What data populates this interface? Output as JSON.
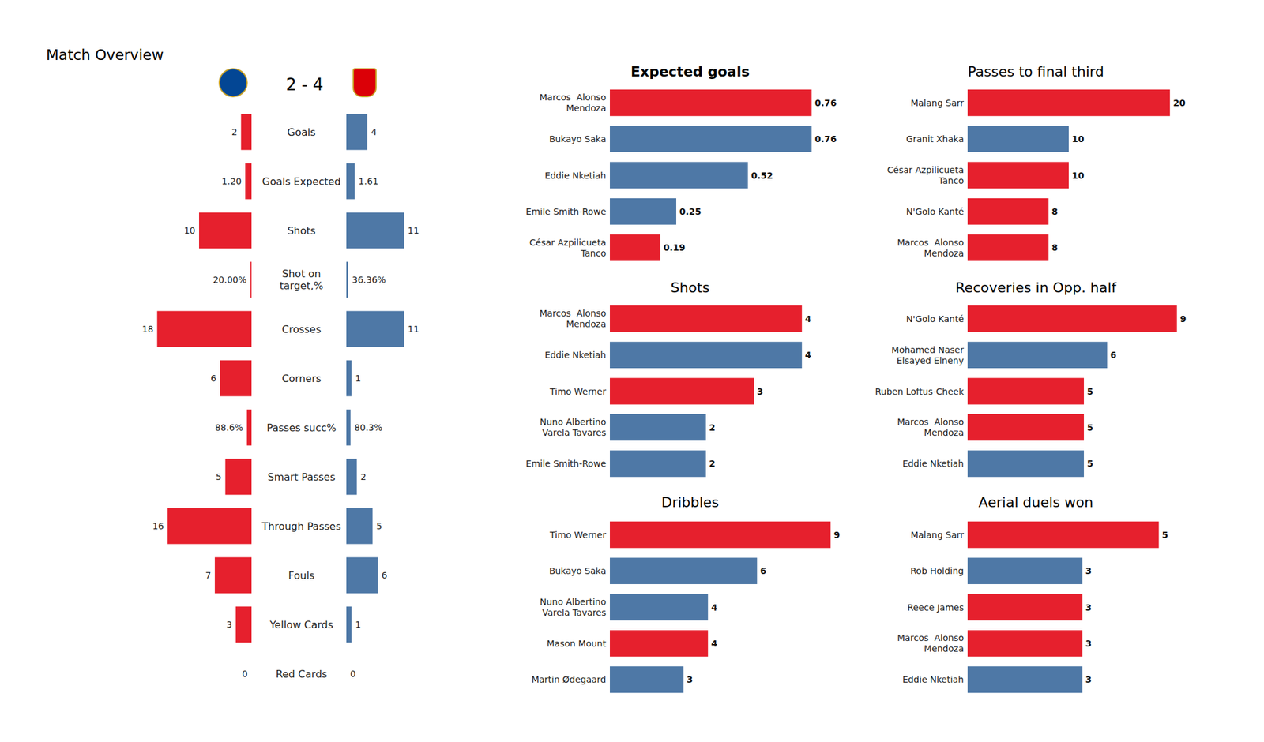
{
  "chart_data": [
    {
      "type": "bar",
      "orientation": "horizontal",
      "title": "Match Overview",
      "subtitle": "2 - 4",
      "categories": [
        "Goals",
        "Goals Expected",
        "Shots",
        "Shot on\ntarget,%",
        "Crosses",
        "Corners",
        "Passes succ%",
        "Smart Passes",
        "Through Passes",
        "Fouls",
        "Yellow Cards",
        "Red Cards"
      ],
      "series": [
        {
          "color": "#e6202d",
          "values": [
            2,
            1.2,
            10,
            0.2,
            18,
            6,
            0.886,
            5,
            16,
            7,
            3,
            0
          ],
          "value_labels": [
            "2",
            "1.20",
            "10",
            "20.00%",
            "18",
            "6",
            "88.6%",
            "5",
            "16",
            "7",
            "3",
            "0"
          ]
        },
        {
          "color": "#4e78a6",
          "values": [
            4,
            1.61,
            11,
            0.3636,
            11,
            1,
            0.803,
            2,
            5,
            6,
            1,
            0
          ],
          "value_labels": [
            "4",
            "1.61",
            "11",
            "36.36%",
            "11",
            "1",
            "80.3%",
            "2",
            "5",
            "6",
            "1",
            "0"
          ]
        }
      ],
      "xlim": [
        0,
        20
      ],
      "data_labels": true,
      "tick_labels": false,
      "grid": false
    },
    {
      "type": "bar",
      "orientation": "horizontal",
      "title": "Expected goals",
      "categories": [
        "Marcos  Alonso\nMendoza",
        "Bukayo Saka",
        "Eddie Nketiah",
        "Emile Smith-Rowe",
        "César Azpilicueta\nTanco"
      ],
      "values": [
        0.76,
        0.76,
        0.52,
        0.25,
        0.19
      ],
      "colors": [
        "#e6202d",
        "#4e78a6",
        "#4e78a6",
        "#4e78a6",
        "#e6202d"
      ],
      "xlim": [
        0,
        0.85
      ],
      "data_labels": true,
      "tick_labels": "y",
      "grid": false
    },
    {
      "type": "bar",
      "orientation": "horizontal",
      "title": "Passes to final third",
      "categories": [
        "Malang Sarr",
        "Granit Xhaka",
        "César Azpilicueta\nTanco",
        "N'Golo Kanté",
        "Marcos  Alonso\nMendoza"
      ],
      "values": [
        20,
        10,
        10,
        8,
        8
      ],
      "colors": [
        "#e6202d",
        "#4e78a6",
        "#e6202d",
        "#e6202d",
        "#e6202d"
      ],
      "xlim": [
        0,
        22.3
      ],
      "data_labels": true,
      "tick_labels": "y",
      "grid": false
    },
    {
      "type": "bar",
      "orientation": "horizontal",
      "title": "Shots",
      "categories": [
        "Marcos  Alonso\nMendoza",
        "Eddie Nketiah",
        "Timo Werner",
        "Nuno Albertino\nVarela Tavares",
        "Emile Smith-Rowe"
      ],
      "values": [
        4,
        4,
        3,
        2,
        2
      ],
      "colors": [
        "#e6202d",
        "#4e78a6",
        "#e6202d",
        "#4e78a6",
        "#4e78a6"
      ],
      "xlim": [
        0,
        4.7
      ],
      "data_labels": true,
      "tick_labels": "y",
      "grid": false
    },
    {
      "type": "bar",
      "orientation": "horizontal",
      "title": "Recoveries in Opp. half",
      "categories": [
        "N'Golo Kanté",
        "Mohamed Naser\nElsayed Elneny",
        "Ruben Loftus-Cheek",
        "Marcos  Alonso\nMendoza",
        "Eddie Nketiah"
      ],
      "values": [
        9,
        6,
        5,
        5,
        5
      ],
      "colors": [
        "#e6202d",
        "#4e78a6",
        "#e6202d",
        "#e6202d",
        "#4e78a6"
      ],
      "xlim": [
        0,
        9.7
      ],
      "data_labels": true,
      "tick_labels": "y",
      "grid": false
    },
    {
      "type": "bar",
      "orientation": "horizontal",
      "title": "Dribbles",
      "categories": [
        "Timo Werner",
        "Bukayo Saka",
        "Nuno Albertino\nVarela Tavares",
        "Mason Mount",
        "Martin Ødegaard"
      ],
      "values": [
        9,
        6,
        4,
        4,
        3
      ],
      "colors": [
        "#e6202d",
        "#4e78a6",
        "#4e78a6",
        "#e6202d",
        "#4e78a6"
      ],
      "xlim": [
        0,
        9.2
      ],
      "data_labels": true,
      "tick_labels": "y",
      "grid": false
    },
    {
      "type": "bar",
      "orientation": "horizontal",
      "title": "Aerial duels won",
      "categories": [
        "Malang Sarr",
        "Rob Holding",
        "Reece James",
        "Marcos  Alonso\nMendoza",
        "Eddie Nketiah"
      ],
      "values": [
        5,
        3,
        3,
        3,
        3
      ],
      "colors": [
        "#e6202d",
        "#4e78a6",
        "#e6202d",
        "#e6202d",
        "#4e78a6"
      ],
      "xlim": [
        0,
        5.9
      ],
      "data_labels": true,
      "tick_labels": "y",
      "grid": false
    }
  ]
}
